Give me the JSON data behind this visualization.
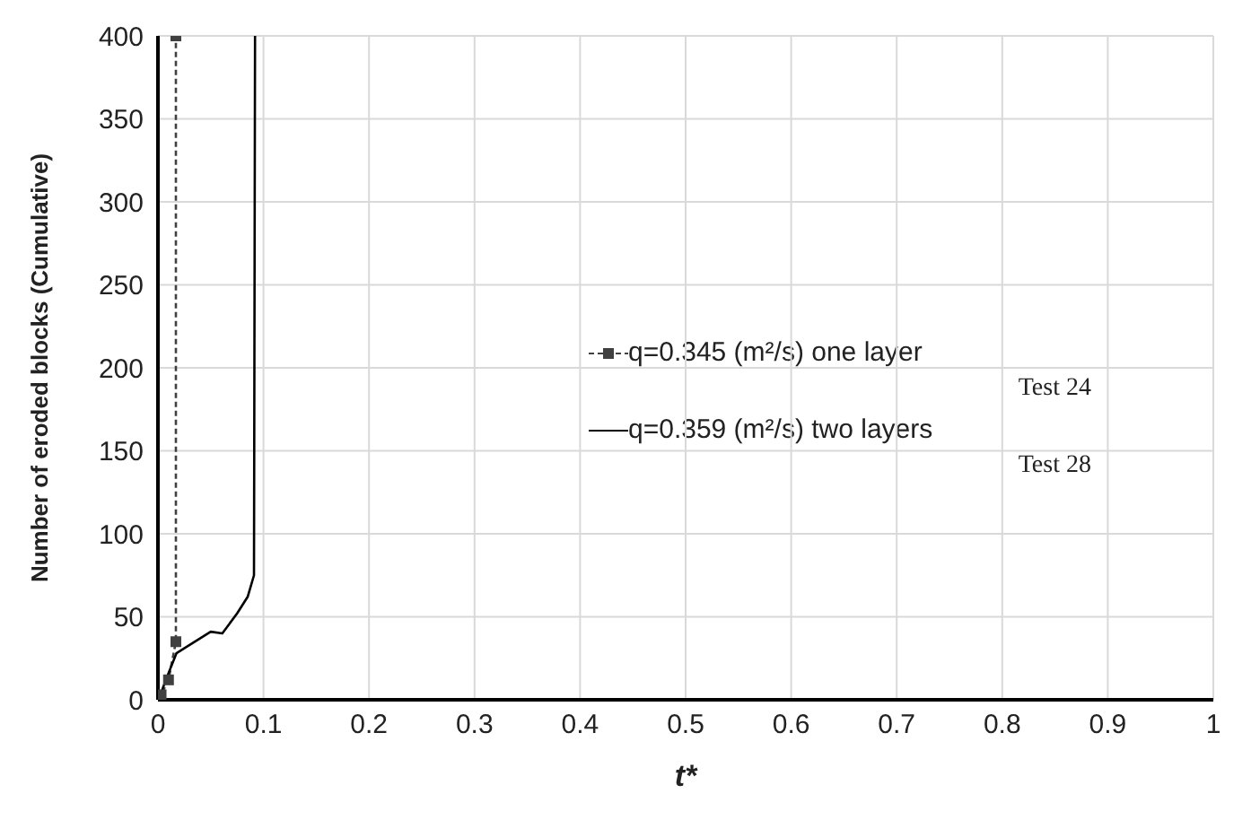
{
  "chart_data": {
    "type": "line",
    "xlabel": "t*",
    "ylabel": "Number of eroded blocks (Cumulative)",
    "xlim": [
      0,
      1
    ],
    "xticks": [
      0,
      0.1,
      0.2,
      0.3,
      0.4,
      0.5,
      0.6,
      0.7,
      0.8,
      0.9,
      1
    ],
    "ylim": [
      0,
      400
    ],
    "yticks": [
      0,
      50,
      100,
      150,
      200,
      250,
      300,
      350,
      400
    ],
    "grid": true,
    "legend": "right",
    "annotations": [
      "Test 24",
      "Test 28"
    ],
    "series": [
      {
        "name": "q=0.345 (m²/s) one layer",
        "color": "#404040",
        "marker": "square",
        "line_style": "dashed",
        "x": [
          0,
          0.003,
          0.01,
          0.017,
          0.017
        ],
        "values": [
          0,
          3,
          12,
          35,
          400
        ]
      },
      {
        "name": "q=0.359 (m²/s) two layers",
        "color": "#000000",
        "marker": "none",
        "line_style": "solid",
        "x": [
          0,
          0.004,
          0.01,
          0.0175,
          0.03,
          0.05,
          0.061,
          0.075,
          0.085,
          0.091,
          0.092
        ],
        "values": [
          0,
          6,
          16,
          28,
          33,
          41,
          40,
          52,
          62,
          75,
          400
        ]
      }
    ]
  }
}
